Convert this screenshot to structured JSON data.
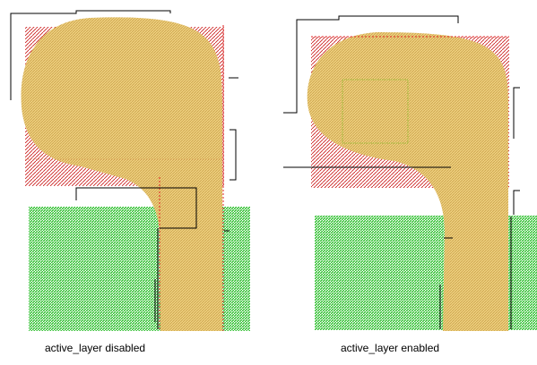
{
  "captions": {
    "disabled": "active_layer disabled",
    "enabled": "active_layer enabled"
  },
  "colors": {
    "green_fill": "#4fd64f",
    "tan_fill": "#e7c46a",
    "red_hatch": "#cc2020",
    "line": "#000000",
    "dashed_red": "#e02020",
    "selection_box": "#8dbb2b"
  }
}
